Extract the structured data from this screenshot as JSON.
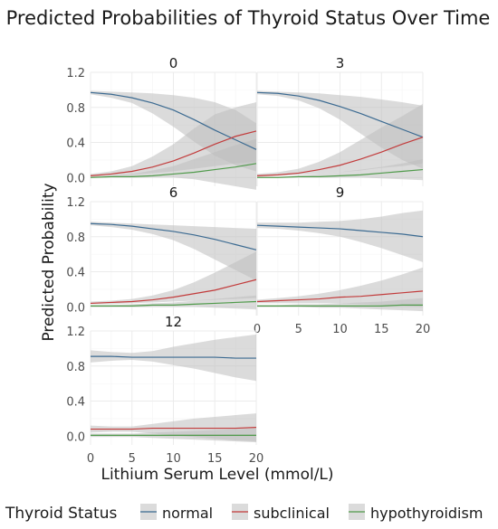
{
  "chart_data": {
    "type": "line",
    "title": "Predicted Probabilities of Thyroid Status Over Time",
    "xlabel": "Lithium Serum Level (mmol/L)",
    "ylabel": "Predicted Probability",
    "xlim": [
      0,
      20
    ],
    "ylim": [
      -0.1,
      1.2
    ],
    "xticks": [
      0,
      5,
      10,
      15,
      20
    ],
    "yticks": [
      0.0,
      0.4,
      0.8,
      1.2
    ],
    "x_tick_labels": [
      "0",
      "5",
      "10",
      "15",
      "20"
    ],
    "y_tick_labels": [
      "0.0",
      "0.4",
      "0.8",
      "1.2"
    ],
    "grid": true,
    "legend": {
      "title": "Thyroid Status",
      "position": "bottom",
      "entries": [
        "normal",
        "subclinical",
        "hypothyroidism"
      ]
    },
    "colors": {
      "normal": "#3b6a91",
      "subclinical": "#c23b3b",
      "hypothyroidism": "#4f9a4a",
      "band": "#bdbdbd"
    },
    "x": [
      0,
      2.5,
      5,
      7.5,
      10,
      12.5,
      15,
      17.5,
      20
    ],
    "panels": [
      {
        "label": "0",
        "series": [
          {
            "name": "normal",
            "values": [
              0.97,
              0.95,
              0.91,
              0.85,
              0.77,
              0.66,
              0.54,
              0.43,
              0.32
            ],
            "lower": [
              0.95,
              0.91,
              0.85,
              0.73,
              0.58,
              0.41,
              0.25,
              0.14,
              0.07
            ],
            "upper": [
              0.99,
              0.98,
              0.97,
              0.96,
              0.94,
              0.91,
              0.86,
              0.77,
              0.62
            ]
          },
          {
            "name": "subclinical",
            "values": [
              0.02,
              0.04,
              0.07,
              0.12,
              0.19,
              0.28,
              0.38,
              0.47,
              0.53
            ],
            "lower": [
              0.01,
              0.02,
              0.03,
              0.05,
              0.07,
              0.1,
              0.13,
              0.16,
              0.18
            ],
            "upper": [
              0.04,
              0.07,
              0.13,
              0.24,
              0.38,
              0.56,
              0.72,
              0.8,
              0.86
            ]
          },
          {
            "name": "hypothyroidism",
            "values": [
              0.0,
              0.01,
              0.01,
              0.02,
              0.04,
              0.06,
              0.09,
              0.12,
              0.16
            ],
            "lower": [
              0.0,
              0.0,
              0.0,
              0.0,
              0.0,
              -0.02,
              -0.06,
              -0.1,
              -0.14
            ],
            "upper": [
              0.01,
              0.02,
              0.04,
              0.08,
              0.13,
              0.21,
              0.29,
              0.37,
              0.44
            ]
          }
        ]
      },
      {
        "label": "3",
        "series": [
          {
            "name": "normal",
            "values": [
              0.97,
              0.96,
              0.93,
              0.88,
              0.81,
              0.73,
              0.64,
              0.55,
              0.46
            ],
            "lower": [
              0.95,
              0.93,
              0.88,
              0.79,
              0.66,
              0.5,
              0.34,
              0.2,
              0.1
            ],
            "upper": [
              0.99,
              0.98,
              0.97,
              0.96,
              0.94,
              0.92,
              0.89,
              0.86,
              0.82
            ]
          },
          {
            "name": "subclinical",
            "values": [
              0.02,
              0.03,
              0.05,
              0.09,
              0.14,
              0.21,
              0.29,
              0.38,
              0.46
            ],
            "lower": [
              0.01,
              0.02,
              0.03,
              0.04,
              0.06,
              0.08,
              0.11,
              0.13,
              0.16
            ],
            "upper": [
              0.04,
              0.06,
              0.1,
              0.18,
              0.29,
              0.43,
              0.57,
              0.7,
              0.84
            ]
          },
          {
            "name": "hypothyroidism",
            "values": [
              0.0,
              0.0,
              0.01,
              0.01,
              0.02,
              0.03,
              0.05,
              0.07,
              0.09
            ],
            "lower": [
              0.0,
              0.0,
              0.0,
              0.0,
              0.0,
              0.0,
              -0.01,
              -0.02,
              -0.03
            ],
            "upper": [
              0.01,
              0.01,
              0.02,
              0.04,
              0.06,
              0.09,
              0.12,
              0.16,
              0.21
            ]
          }
        ]
      },
      {
        "label": "6",
        "series": [
          {
            "name": "normal",
            "values": [
              0.95,
              0.94,
              0.92,
              0.89,
              0.86,
              0.82,
              0.77,
              0.71,
              0.65
            ],
            "lower": [
              0.93,
              0.91,
              0.88,
              0.83,
              0.76,
              0.66,
              0.54,
              0.42,
              0.3
            ],
            "upper": [
              0.97,
              0.96,
              0.95,
              0.94,
              0.93,
              0.92,
              0.91,
              0.9,
              0.89
            ]
          },
          {
            "name": "subclinical",
            "values": [
              0.04,
              0.05,
              0.06,
              0.08,
              0.11,
              0.15,
              0.19,
              0.25,
              0.31
            ],
            "lower": [
              0.03,
              0.03,
              0.04,
              0.05,
              0.06,
              0.07,
              0.08,
              0.09,
              0.1
            ],
            "upper": [
              0.06,
              0.07,
              0.09,
              0.13,
              0.19,
              0.28,
              0.39,
              0.51,
              0.63
            ]
          },
          {
            "name": "hypothyroidism",
            "values": [
              0.01,
              0.01,
              0.01,
              0.02,
              0.02,
              0.03,
              0.04,
              0.05,
              0.06
            ],
            "lower": [
              0.0,
              0.0,
              0.0,
              0.0,
              0.0,
              0.0,
              -0.01,
              -0.02,
              -0.03
            ],
            "upper": [
              0.02,
              0.02,
              0.03,
              0.04,
              0.05,
              0.07,
              0.09,
              0.11,
              0.13
            ]
          }
        ]
      },
      {
        "label": "9",
        "series": [
          {
            "name": "normal",
            "values": [
              0.93,
              0.92,
              0.91,
              0.9,
              0.89,
              0.87,
              0.85,
              0.83,
              0.8
            ],
            "lower": [
              0.9,
              0.89,
              0.87,
              0.84,
              0.8,
              0.74,
              0.67,
              0.59,
              0.51
            ],
            "upper": [
              0.96,
              0.96,
              0.96,
              0.97,
              0.98,
              1.0,
              1.03,
              1.07,
              1.1
            ]
          },
          {
            "name": "subclinical",
            "values": [
              0.06,
              0.07,
              0.08,
              0.09,
              0.11,
              0.12,
              0.14,
              0.16,
              0.18
            ],
            "lower": [
              0.04,
              0.04,
              0.04,
              0.04,
              0.04,
              0.03,
              0.02,
              0.01,
              0.0
            ],
            "upper": [
              0.08,
              0.1,
              0.12,
              0.15,
              0.19,
              0.24,
              0.3,
              0.37,
              0.45
            ]
          },
          {
            "name": "hypothyroidism",
            "values": [
              0.01,
              0.01,
              0.01,
              0.01,
              0.01,
              0.01,
              0.01,
              0.02,
              0.02
            ],
            "lower": [
              0.0,
              0.0,
              0.0,
              -0.01,
              -0.01,
              -0.02,
              -0.03,
              -0.04,
              -0.05
            ],
            "upper": [
              0.02,
              0.02,
              0.03,
              0.03,
              0.04,
              0.05,
              0.06,
              0.08,
              0.1
            ]
          }
        ]
      },
      {
        "label": "12",
        "series": [
          {
            "name": "normal",
            "values": [
              0.91,
              0.91,
              0.9,
              0.9,
              0.9,
              0.9,
              0.9,
              0.89,
              0.89
            ],
            "lower": [
              0.84,
              0.86,
              0.87,
              0.85,
              0.81,
              0.77,
              0.72,
              0.67,
              0.63
            ],
            "upper": [
              0.98,
              0.96,
              0.95,
              0.97,
              1.02,
              1.06,
              1.1,
              1.13,
              1.16
            ]
          },
          {
            "name": "subclinical",
            "values": [
              0.08,
              0.08,
              0.08,
              0.09,
              0.09,
              0.09,
              0.09,
              0.09,
              0.1
            ],
            "lower": [
              0.04,
              0.05,
              0.05,
              0.03,
              0.01,
              -0.01,
              -0.03,
              -0.05,
              -0.06
            ],
            "upper": [
              0.12,
              0.11,
              0.11,
              0.14,
              0.17,
              0.2,
              0.22,
              0.24,
              0.26
            ]
          },
          {
            "name": "hypothyroidism",
            "values": [
              0.01,
              0.01,
              0.01,
              0.01,
              0.01,
              0.01,
              0.01,
              0.01,
              0.01
            ],
            "lower": [
              -0.01,
              -0.01,
              -0.01,
              -0.02,
              -0.03,
              -0.04,
              -0.05,
              -0.06,
              -0.07
            ],
            "upper": [
              0.03,
              0.03,
              0.03,
              0.04,
              0.05,
              0.06,
              0.07,
              0.08,
              0.09
            ]
          }
        ]
      }
    ]
  }
}
